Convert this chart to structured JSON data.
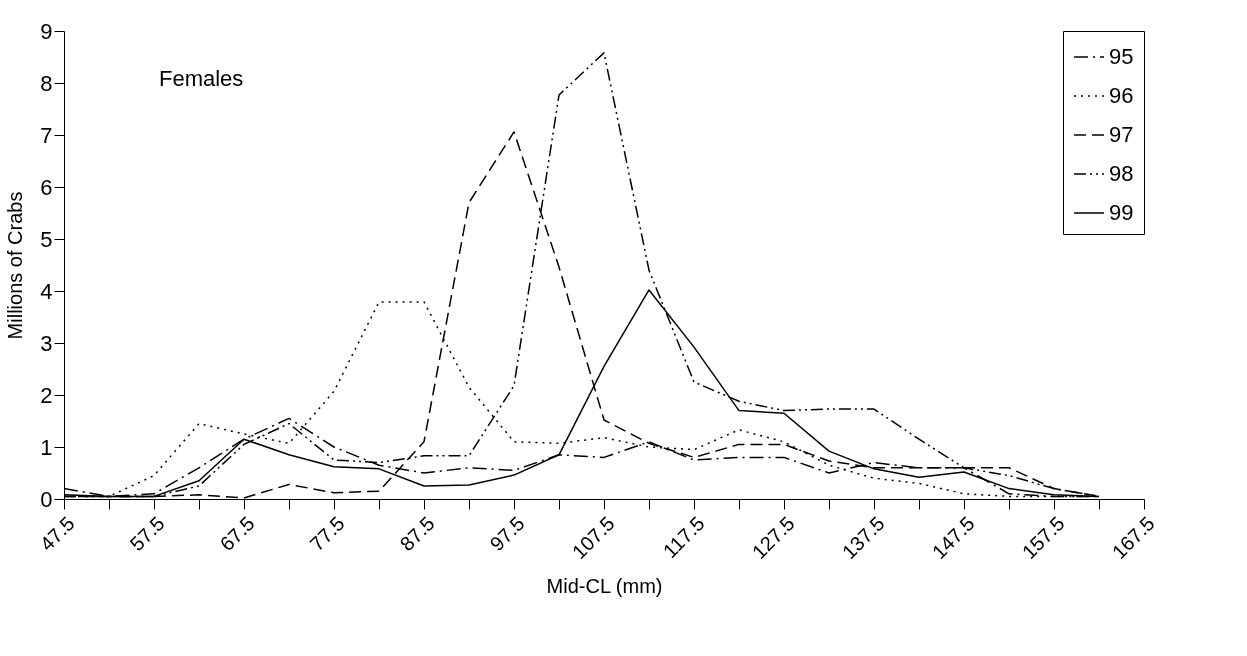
{
  "chart_data": {
    "type": "line",
    "xlabel": "Mid-CL (mm)",
    "ylabel": "Millions of Crabs",
    "annotations": [
      "Females"
    ],
    "x": [
      47.5,
      52.5,
      57.5,
      62.5,
      67.5,
      72.5,
      77.5,
      82.5,
      87.5,
      92.5,
      97.5,
      102.5,
      107.5,
      112.5,
      117.5,
      122.5,
      127.5,
      132.5,
      137.5,
      142.5,
      147.5,
      152.5,
      157.5,
      162.5
    ],
    "xlim": [
      47.5,
      167.5
    ],
    "xticks": [
      47.5,
      {
        "value": 52.5,
        "label": null
      },
      57.5,
      {
        "value": 62.5,
        "label": null
      },
      67.5,
      {
        "value": 72.5,
        "label": null
      },
      77.5,
      {
        "value": 82.5,
        "label": null
      },
      87.5,
      {
        "value": 92.5,
        "label": null
      },
      97.5,
      {
        "value": 102.5,
        "label": null
      },
      107.5,
      {
        "value": 112.5,
        "label": null
      },
      117.5,
      {
        "value": 122.5,
        "label": null
      },
      127.5,
      {
        "value": 132.5,
        "label": null
      },
      137.5,
      {
        "value": 142.5,
        "label": null
      },
      147.5,
      {
        "value": 152.5,
        "label": null
      },
      157.5,
      {
        "value": 162.5,
        "label": null
      },
      167.5
    ],
    "ylim": [
      0,
      9
    ],
    "yticks": [
      0,
      1,
      2,
      3,
      4,
      5,
      6,
      7,
      8,
      9
    ],
    "grid": false,
    "legend": "top right",
    "series": [
      {
        "name": "95",
        "color": "#000000",
        "line_style": "dashed",
        "values": [
          0.2,
          0.05,
          0.1,
          0.6,
          1.15,
          1.55,
          1.0,
          0.65,
          0.5,
          0.6,
          0.55,
          0.85,
          0.8,
          1.1,
          0.75,
          0.8,
          0.8,
          0.5,
          0.7,
          0.6,
          0.6,
          0.1,
          0.05,
          0.05
        ]
      },
      {
        "name": "96",
        "color": "#000000",
        "line_style": "dotted",
        "values": [
          0.05,
          0.05,
          0.45,
          1.45,
          1.25,
          1.07,
          2.07,
          3.79,
          3.79,
          2.15,
          1.1,
          1.07,
          1.18,
          1.0,
          0.95,
          1.33,
          1.1,
          0.65,
          0.4,
          0.3,
          0.1,
          0.05,
          0.05,
          0.05
        ]
      },
      {
        "name": "97",
        "color": "#000000",
        "line_style": "dashed",
        "values": [
          0.05,
          0.05,
          0.05,
          0.08,
          0.02,
          0.28,
          0.12,
          0.15,
          1.1,
          5.7,
          7.06,
          4.46,
          1.52,
          1.07,
          0.8,
          1.05,
          1.05,
          0.73,
          0.6,
          0.6,
          0.6,
          0.6,
          0.2,
          0.05
        ]
      },
      {
        "name": "98",
        "color": "#000000",
        "line_style": "dashed",
        "values": [
          0.05,
          0.05,
          0.05,
          0.25,
          1.05,
          1.45,
          0.75,
          0.7,
          0.83,
          0.83,
          2.18,
          7.77,
          8.58,
          4.4,
          2.25,
          1.88,
          1.7,
          1.73,
          1.73,
          1.15,
          0.6,
          0.45,
          0.2,
          0.05
        ]
      },
      {
        "name": "99",
        "color": "#000000",
        "line_style": "solid",
        "values": [
          0.08,
          0.05,
          0.05,
          0.35,
          1.15,
          0.85,
          0.62,
          0.58,
          0.25,
          0.27,
          0.46,
          0.85,
          2.55,
          4.02,
          2.92,
          1.7,
          1.65,
          0.92,
          0.58,
          0.42,
          0.52,
          0.2,
          0.08,
          0.05
        ]
      }
    ]
  }
}
